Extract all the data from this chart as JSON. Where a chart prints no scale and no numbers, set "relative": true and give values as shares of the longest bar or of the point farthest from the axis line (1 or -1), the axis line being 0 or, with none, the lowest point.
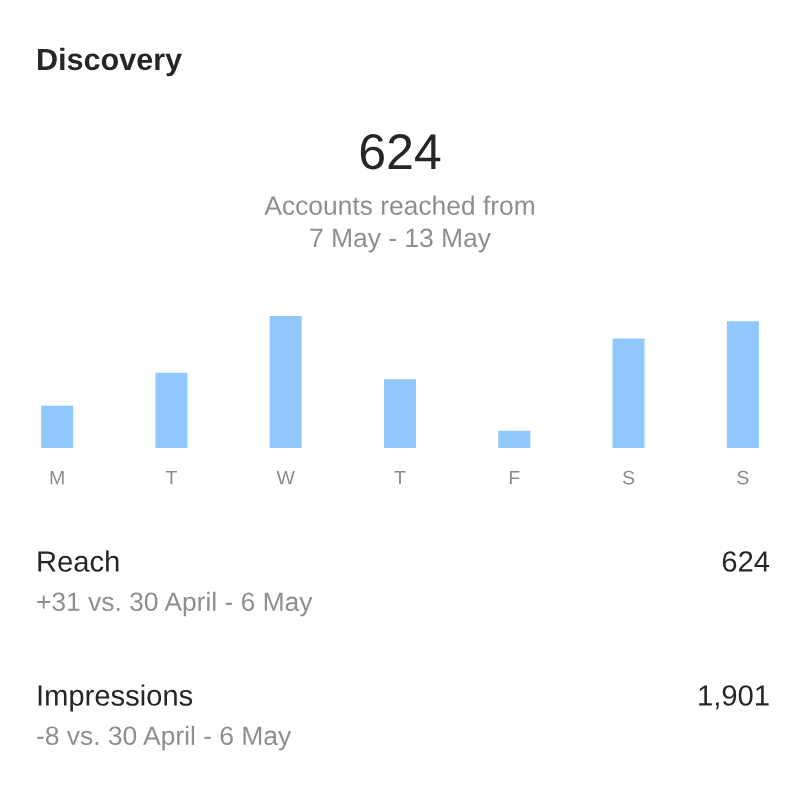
{
  "chart_data": {
    "type": "bar",
    "title": "Discovery",
    "subtitle": "624",
    "annotations": [
      "Accounts reached from\n7 May - 13 May",
      "Reach",
      "624",
      "+31 vs. 30 April - 6 May",
      "Impressions",
      "1,901",
      "-8 vs. 30 April - 6 May"
    ],
    "categories": [
      "M",
      "T",
      "W",
      "T",
      "F",
      "S",
      "S"
    ],
    "values": [
      0.32,
      0.57,
      1,
      0.52,
      0.13,
      0.83,
      0.96
    ],
    "color": "#90c8fc",
    "relative": true,
    "grid": false,
    "legend": false
  }
}
